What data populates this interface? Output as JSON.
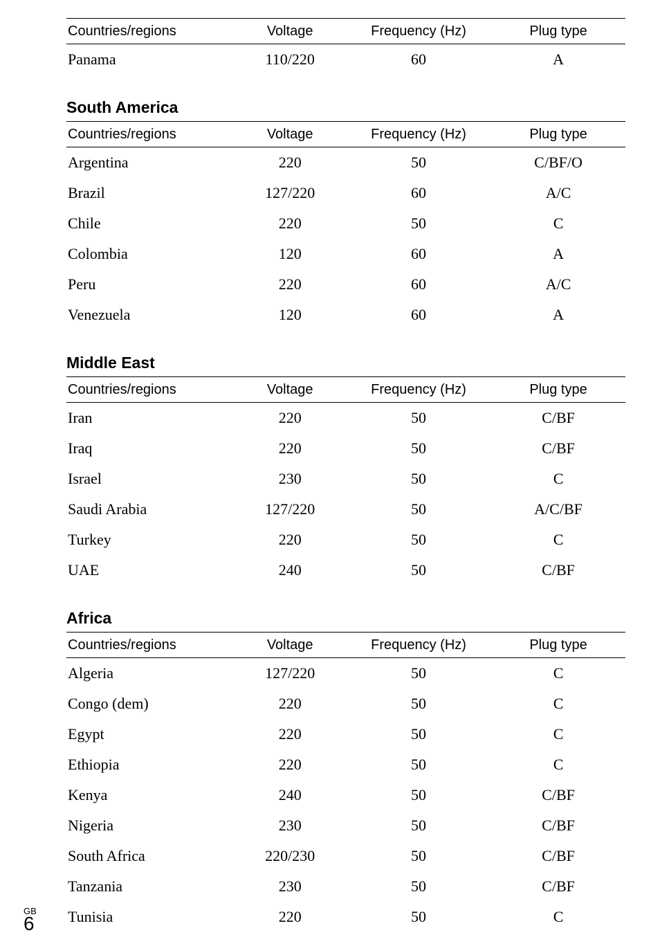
{
  "headers": {
    "country": "Countries/regions",
    "voltage": "Voltage",
    "frequency": "Frequency (Hz)",
    "plug": "Plug type"
  },
  "top_table": {
    "rows": [
      {
        "country": "Panama",
        "voltage": "110/220",
        "frequency": "60",
        "plug": "A"
      }
    ]
  },
  "sections": [
    {
      "title": "South America",
      "rows": [
        {
          "country": "Argentina",
          "voltage": "220",
          "frequency": "50",
          "plug": "C/BF/O"
        },
        {
          "country": "Brazil",
          "voltage": "127/220",
          "frequency": "60",
          "plug": "A/C"
        },
        {
          "country": "Chile",
          "voltage": "220",
          "frequency": "50",
          "plug": "C"
        },
        {
          "country": "Colombia",
          "voltage": "120",
          "frequency": "60",
          "plug": "A"
        },
        {
          "country": "Peru",
          "voltage": "220",
          "frequency": "60",
          "plug": "A/C"
        },
        {
          "country": "Venezuela",
          "voltage": "120",
          "frequency": "60",
          "plug": "A"
        }
      ]
    },
    {
      "title": "Middle East",
      "rows": [
        {
          "country": "Iran",
          "voltage": "220",
          "frequency": "50",
          "plug": "C/BF"
        },
        {
          "country": "Iraq",
          "voltage": "220",
          "frequency": "50",
          "plug": "C/BF"
        },
        {
          "country": "Israel",
          "voltage": "230",
          "frequency": "50",
          "plug": "C"
        },
        {
          "country": "Saudi Arabia",
          "voltage": "127/220",
          "frequency": "50",
          "plug": "A/C/BF"
        },
        {
          "country": "Turkey",
          "voltage": "220",
          "frequency": "50",
          "plug": "C"
        },
        {
          "country": "UAE",
          "voltage": "240",
          "frequency": "50",
          "plug": "C/BF"
        }
      ]
    },
    {
      "title": "Africa",
      "rows": [
        {
          "country": "Algeria",
          "voltage": "127/220",
          "frequency": "50",
          "plug": "C"
        },
        {
          "country": "Congo (dem)",
          "voltage": "220",
          "frequency": "50",
          "plug": "C"
        },
        {
          "country": "Egypt",
          "voltage": "220",
          "frequency": "50",
          "plug": "C"
        },
        {
          "country": "Ethiopia",
          "voltage": "220",
          "frequency": "50",
          "plug": "C"
        },
        {
          "country": "Kenya",
          "voltage": "240",
          "frequency": "50",
          "plug": "C/BF"
        },
        {
          "country": "Nigeria",
          "voltage": "230",
          "frequency": "50",
          "plug": "C/BF"
        },
        {
          "country": "South Africa",
          "voltage": "220/230",
          "frequency": "50",
          "plug": "C/BF"
        },
        {
          "country": "Tanzania",
          "voltage": "230",
          "frequency": "50",
          "plug": "C/BF"
        },
        {
          "country": "Tunisia",
          "voltage": "220",
          "frequency": "50",
          "plug": "C"
        }
      ]
    }
  ],
  "footer": {
    "lang": "GB",
    "page": "6"
  },
  "style": {
    "page_bg": "#ffffff",
    "text_color": "#000000",
    "header_font": "Arial, Helvetica, sans-serif",
    "body_font": "\"Times New Roman\", Times, serif",
    "section_title_fontsize": 23,
    "header_fontsize": 20,
    "cell_fontsize": 22,
    "border_color": "#000000",
    "top_border_width": 1.5,
    "mid_border_width": 1,
    "col_widths_pct": {
      "country": 30,
      "voltage": 20,
      "frequency": 26,
      "plug": 24
    }
  }
}
